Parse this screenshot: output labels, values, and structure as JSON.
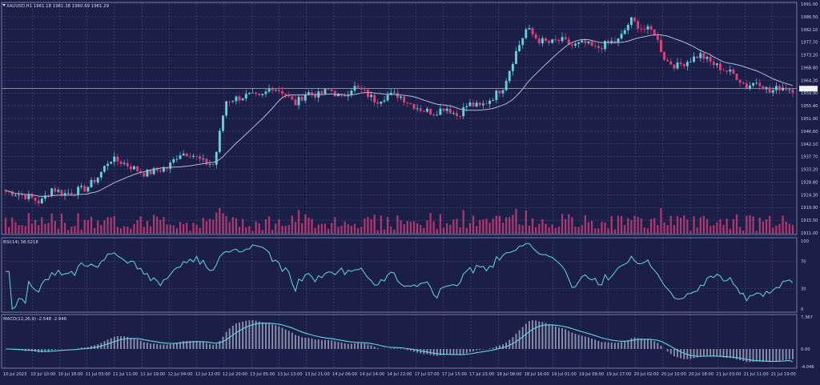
{
  "window": {
    "main_title": "XAUUSD,H1  1961.18 1961.38 1960.69 1961.29",
    "rsi_title": "RSI(14) 38.5218",
    "macd_title": "MACD(12,26,9) -2.548 -2.946"
  },
  "colors": {
    "background": "#1b1f48",
    "grid": "#4e5684",
    "bull": "#5fd3e0",
    "bear": "#e0407a",
    "ma": "#b5b9cf",
    "indicator": "#63d6e6",
    "histogram": "#aab0c8",
    "price_tag_bg": "#f2f2f6"
  },
  "chart_data": [
    {
      "type": "candlestick",
      "name": "XAUUSD,H1",
      "last_price": "1961.29",
      "price_axis_labels": [
        "1991.00",
        "1986.50",
        "1982.10",
        "1977.70",
        "1973.20",
        "1968.80",
        "1964.30",
        "1959.90",
        "1955.40",
        "1951.00",
        "1946.60",
        "1942.10",
        "1937.70",
        "1933.20",
        "1928.80",
        "1924.30",
        "1919.90",
        "1915.50",
        "1911.00"
      ],
      "time_labels": [
        "10 Jul 2023",
        "10 Jul 10:00",
        "10 Jul 18:00",
        "11 Jul 03:00",
        "11 Jul 11:00",
        "11 Jul 19:00",
        "12 Jul 04:00",
        "12 Jul 12:00",
        "12 Jul 20:00",
        "13 Jul 05:00",
        "13 Jul 13:00",
        "13 Jul 21:00",
        "14 Jul 06:00",
        "14 Jul 14:00",
        "14 Jul 22:00",
        "17 Jul 07:00",
        "17 Jul 15:00",
        "17 Jul 23:00",
        "18 Jul 08:00",
        "18 Jul 16:00",
        "19 Jul 01:00",
        "19 Jul 09:00",
        "19 Jul 17:00",
        "20 Jul 02:00",
        "20 Jul 10:00",
        "20 Jul 18:00",
        "21 Jul 03:00",
        "21 Jul 11:00",
        "21 Jul 19:00"
      ],
      "close_path": [
        1926,
        1925,
        1924,
        1922,
        1927,
        1925,
        1926,
        1927,
        1931,
        1937,
        1936,
        1934,
        1932,
        1933,
        1934,
        1939,
        1939,
        1936,
        1935,
        1957,
        1958,
        1959,
        1958,
        1962,
        1960,
        1956,
        1960,
        1959,
        1961,
        1958,
        1962,
        1960,
        1957,
        1959,
        1959,
        1956,
        1954,
        1953,
        1955,
        1952,
        1956,
        1955,
        1958,
        1962,
        1973,
        1982,
        1978,
        1977,
        1978,
        1976,
        1977,
        1975,
        1977,
        1978,
        1985,
        1982,
        1981,
        1971,
        1969,
        1971,
        1973,
        1970,
        1968,
        1966,
        1962,
        1964,
        1960,
        1962,
        1961
      ]
    },
    {
      "type": "line",
      "name": "RSI(14)",
      "value": 38.5218,
      "levels": [
        100,
        70,
        30,
        0
      ],
      "axis_labels": [
        "100",
        "70",
        "30",
        "0"
      ]
    },
    {
      "type": "line+histogram",
      "name": "MACD(12,26,9)",
      "macd": -2.548,
      "signal": -2.946,
      "axis_labels": [
        "7.367",
        "0.00",
        "-4.046"
      ]
    }
  ]
}
